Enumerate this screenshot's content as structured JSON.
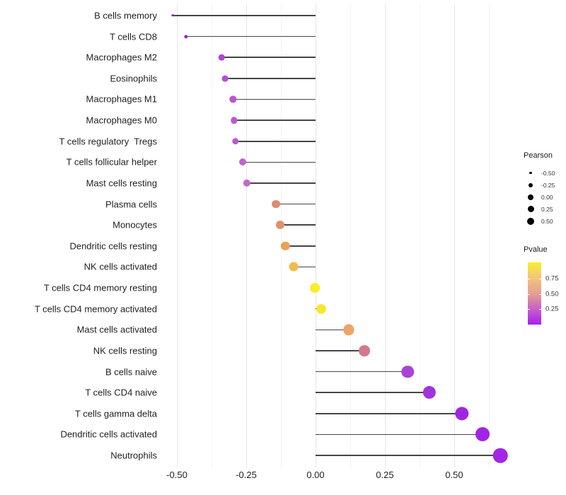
{
  "chart_data": {
    "type": "scatter",
    "subtype": "lollipop",
    "orientation": "horizontal",
    "title": "",
    "xlabel": "",
    "ylabel": "",
    "grid": "vertical-only",
    "x_axis": {
      "tick_labels": [
        "-0.50",
        "-0.25",
        "0.00",
        "0.25",
        "0.50"
      ],
      "tick_values": [
        -0.5,
        -0.25,
        0.0,
        0.25,
        0.5
      ],
      "minor_tick_values": [
        -0.375,
        -0.125,
        0.125,
        0.375,
        0.625
      ],
      "range": [
        -0.572,
        0.724
      ]
    },
    "categories": [
      "B cells memory",
      "T cells CD8",
      "Macrophages M2",
      "Eosinophils",
      "Macrophages M1",
      "Macrophages M0",
      "T cells regulatory  Tregs",
      "T cells follicular helper",
      "Mast cells resting",
      "Plasma cells",
      "Monocytes",
      "Dendritic cells resting",
      "NK cells activated",
      "T cells CD4 memory resting",
      "T cells CD4 memory activated",
      "Mast cells activated",
      "NK cells resting",
      "B cells naive",
      "T cells CD4 naive",
      "T cells gamma delta",
      "Dendritic cells activated",
      "Neutrophils"
    ],
    "points": [
      {
        "label": "B cells memory",
        "pearson": -0.515,
        "color": "#8a25cd"
      },
      {
        "label": "T cells CD8",
        "pearson": -0.468,
        "color": "#9929d2"
      },
      {
        "label": "Macrophages M2",
        "pearson": -0.339,
        "color": "#ab46d2"
      },
      {
        "label": "Eosinophils",
        "pearson": -0.327,
        "color": "#b04fd0"
      },
      {
        "label": "Macrophages M1",
        "pearson": -0.298,
        "color": "#b857ce"
      },
      {
        "label": "Macrophages M0",
        "pearson": -0.294,
        "color": "#ba5acd"
      },
      {
        "label": "T cells regulatory  Tregs",
        "pearson": -0.289,
        "color": "#ba5acd"
      },
      {
        "label": "T cells follicular helper",
        "pearson": -0.262,
        "color": "#c164c7"
      },
      {
        "label": "Mast cells resting",
        "pearson": -0.247,
        "color": "#c368c4"
      },
      {
        "label": "Plasma cells",
        "pearson": -0.142,
        "color": "#dd8a71"
      },
      {
        "label": "Monocytes",
        "pearson": -0.128,
        "color": "#e0906a"
      },
      {
        "label": "Dendritic cells resting",
        "pearson": -0.109,
        "color": "#e9a157"
      },
      {
        "label": "NK cells activated",
        "pearson": -0.078,
        "color": "#f0bd4b"
      },
      {
        "label": "T cells CD4 memory resting",
        "pearson": -0.003,
        "color": "#f9ee28"
      },
      {
        "label": "T cells CD4 memory activated",
        "pearson": 0.02,
        "color": "#f7e72e"
      },
      {
        "label": "Mast cells activated",
        "pearson": 0.119,
        "color": "#eca566"
      },
      {
        "label": "NK cells resting",
        "pearson": 0.177,
        "color": "#d1798f"
      },
      {
        "label": "B cells naive",
        "pearson": 0.332,
        "color": "#a943d6"
      },
      {
        "label": "T cells CD4 naive",
        "pearson": 0.41,
        "color": "#a133dd"
      },
      {
        "label": "T cells gamma delta",
        "pearson": 0.528,
        "color": "#9f27e2"
      },
      {
        "label": "Dendritic cells activated",
        "pearson": 0.602,
        "color": "#a124e6"
      },
      {
        "label": "Neutrophils",
        "pearson": 0.666,
        "color": "#a326e4"
      }
    ],
    "legend_position": "right"
  },
  "legend_pearson": {
    "title": "Pearson",
    "items": [
      {
        "label": "-0.50",
        "diameter": 3.5
      },
      {
        "label": "-0.25",
        "diameter": 6.0
      },
      {
        "label": "0.00",
        "diameter": 8.0
      },
      {
        "label": "0.25",
        "diameter": 9.0
      },
      {
        "label": "0.50",
        "diameter": 10.0
      }
    ],
    "dot_color": "#000000"
  },
  "legend_pvalue": {
    "title": "Pvalue",
    "tick_labels": [
      "0.75",
      "0.50",
      "0.25"
    ],
    "gradient_stops": [
      "#a81ef0",
      "#c863c6",
      "#e59f92",
      "#f2c47e",
      "#f9ee2b"
    ]
  },
  "styles": {
    "stem_color": "#454545",
    "major_grid_color": "#e7e7e7",
    "minor_grid_color": "#f4f4f4",
    "axis_text_color": "#1f1f1f"
  }
}
